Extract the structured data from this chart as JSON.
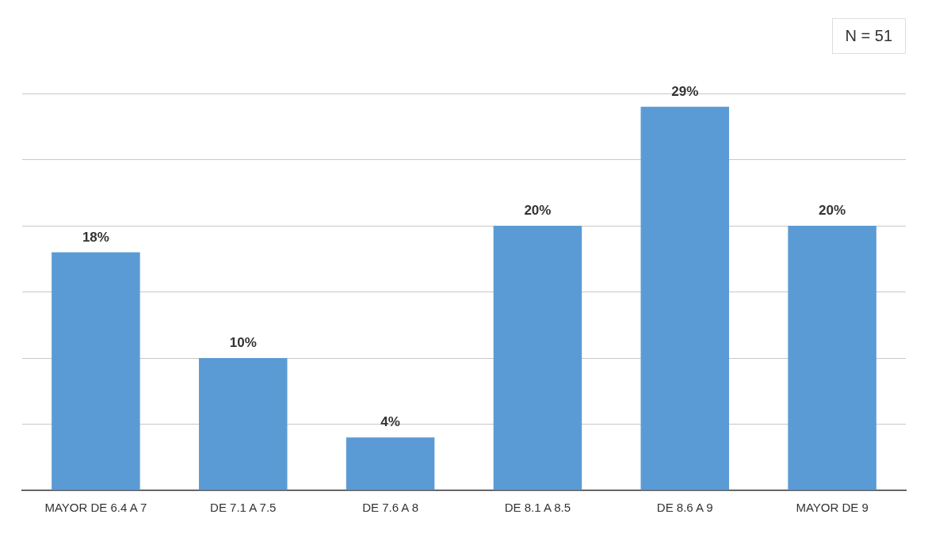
{
  "chart_data": {
    "type": "bar",
    "categories": [
      "MAYOR DE 6.4 A 7",
      "DE 7.1 A 7.5",
      "DE 7.6 A 8",
      "DE 8.1 A 8.5",
      "DE 8.6 A 9",
      "MAYOR DE 9"
    ],
    "values": [
      18,
      10,
      4,
      20,
      29,
      20
    ],
    "value_labels": [
      "18%",
      "10%",
      "4%",
      "20%",
      "29%",
      "20%"
    ],
    "color": "#5b9bd5",
    "ylim": [
      0,
      30
    ],
    "yticks": [
      {
        "value": 0,
        "label": null
      },
      {
        "value": 5,
        "label": null
      },
      {
        "value": 10,
        "label": null
      },
      {
        "value": 15,
        "label": null
      },
      {
        "value": 20,
        "label": null
      },
      {
        "value": 25,
        "label": null
      },
      {
        "value": 30,
        "label": null
      }
    ],
    "grid": "y",
    "tick_labels": "x",
    "legend": false,
    "annotations": [
      "N = 51"
    ]
  }
}
